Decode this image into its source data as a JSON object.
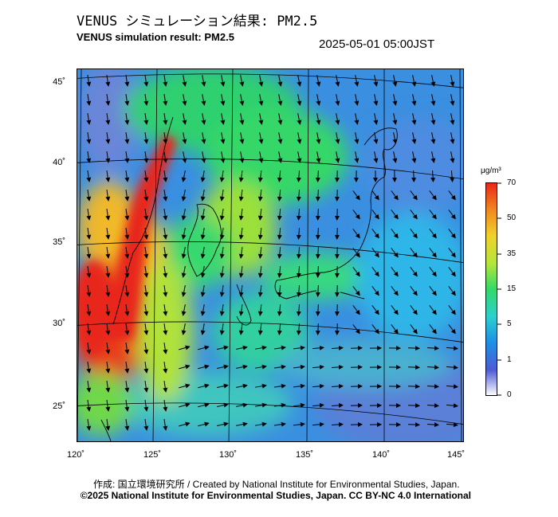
{
  "header": {
    "title_jp": "VENUS シミュレーション結果: PM2.5",
    "title_en": "VENUS simulation result: PM2.5",
    "datetime": "2025-05-01 05:00JST"
  },
  "map": {
    "lat_ticks": [
      "45˚",
      "40˚",
      "35˚",
      "30˚",
      "25˚"
    ],
    "lon_ticks": [
      "120˚",
      "125˚",
      "130˚",
      "135˚",
      "140˚",
      "145˚"
    ]
  },
  "colorbar": {
    "unit": "μg/m³",
    "labels": [
      "70",
      "50",
      "35",
      "15",
      "5",
      "1",
      "0"
    ],
    "colors": [
      "#ffffff",
      "#4f5bd5",
      "#1d8fe6",
      "#2bd0d0",
      "#33d96a",
      "#b4e63a",
      "#f0d22a",
      "#f08a1e",
      "#e8271a"
    ]
  },
  "footer": {
    "credit_line1": "作成: 国立環境研究所 / Created by National Institute for Environmental Studies, Japan.",
    "credit_line2": "©2025 National Institute for Environmental Studies, Japan. CC BY-NC 4.0 International"
  }
}
